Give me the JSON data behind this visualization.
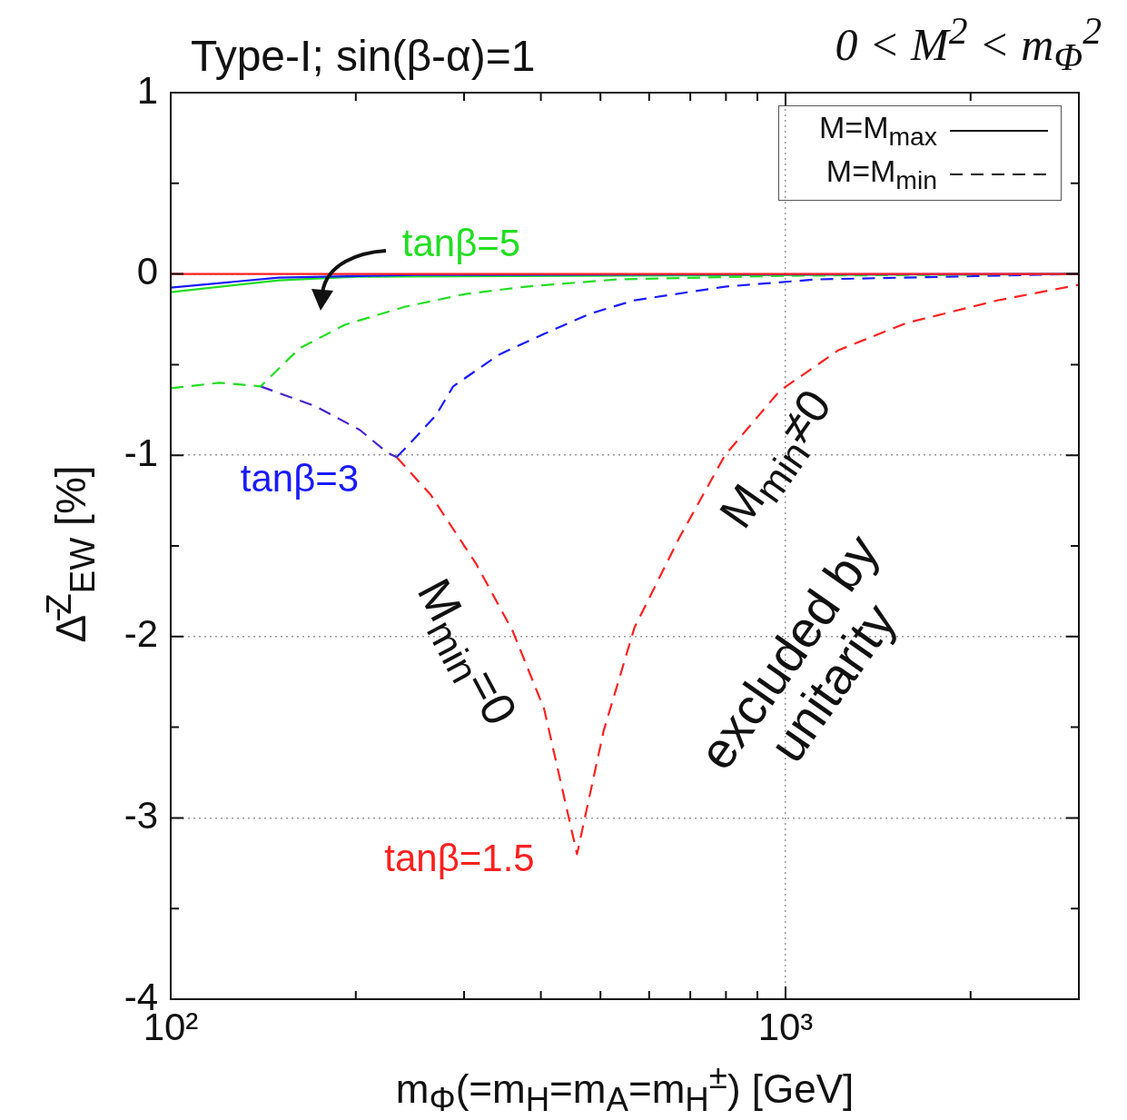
{
  "chart_data": {
    "type": "line",
    "title": "Type-I; sin(β-α)=1",
    "subtitle": "0 < M$^{2}$ < m$_{Φ}$$^{2}$",
    "xlabel": "m$_{Φ}$(=m$_{H}$=m$_{A}$=m$_{H}$$^{±}$) [GeV]",
    "ylabel": "Δ̄$^{Z}$$_{EW}$ [%]",
    "log": "x",
    "xlim": [
      100,
      3000
    ],
    "ylim": [
      -4,
      1
    ],
    "xticks": [
      {
        "value": 100,
        "label": "10²"
      },
      {
        "value": 200,
        "label": null
      },
      {
        "value": 300,
        "label": null
      },
      {
        "value": 400,
        "label": null
      },
      {
        "value": 500,
        "label": null
      },
      {
        "value": 600,
        "label": null
      },
      {
        "value": 700,
        "label": null
      },
      {
        "value": 800,
        "label": null
      },
      {
        "value": 900,
        "label": null
      },
      {
        "value": 1000,
        "label": "10³"
      },
      {
        "value": 2000,
        "label": null
      }
    ],
    "yticks": [
      -4,
      {
        "value": -3.5,
        "label": null
      },
      -3,
      {
        "value": -2.5,
        "label": null
      },
      -2,
      {
        "value": -1.5,
        "label": null
      },
      -1,
      {
        "value": -0.5,
        "label": null
      },
      0,
      {
        "value": 0.5,
        "label": null
      },
      1
    ],
    "grid": true,
    "marker": "none",
    "annotations": [
      "M=M$_{max}$",
      "M=M$_{min}$",
      "M$_{min}$=0",
      "M$_{min}$≠0",
      "excluded by unitarity"
    ],
    "series": [
      {
        "color": "#ff2020",
        "line_style": "solid",
        "x": [
          100,
          3000
        ],
        "values": [
          0,
          0
        ]
      },
      {
        "color": "#1a1aff",
        "line_style": "solid",
        "x": [
          100,
          150,
          250,
          3000
        ],
        "values": [
          -0.075,
          -0.02,
          -0.005,
          0
        ]
      },
      {
        "color": "#22dd22",
        "line_style": "solid",
        "x": [
          100,
          150,
          200,
          3000
        ],
        "values": [
          -0.1,
          -0.035,
          -0.015,
          0
        ]
      },
      {
        "name": "tanβ=5",
        "color": "#22dd22",
        "line_style": "dashed",
        "x": [
          100,
          120,
          140,
          162,
          192,
          241,
          302,
          378,
          532,
          1000,
          3000
        ],
        "values": [
          -0.63,
          -0.6,
          -0.62,
          -0.41,
          -0.28,
          -0.18,
          -0.11,
          -0.07,
          -0.03,
          -0.01,
          0
        ]
      },
      {
        "name": "tanβ=3",
        "color": "#1a1aff",
        "line_style": "dashed",
        "x": [
          233,
          241,
          270,
          288,
          342,
          405,
          480,
          568,
          797,
          1122,
          3000
        ],
        "values": [
          -1.01,
          -0.96,
          -0.78,
          -0.62,
          -0.445,
          -0.33,
          -0.22,
          -0.145,
          -0.07,
          -0.03,
          0
        ]
      },
      {
        "color": "#4a22cc",
        "line_style": "dashed",
        "x": [
          140,
          172,
          203,
          225,
          233
        ],
        "values": [
          -0.62,
          -0.73,
          -0.86,
          -0.985,
          -1.01
        ]
      },
      {
        "name": "tanβ=1.5",
        "color": "#ff2020",
        "line_style": "dashed",
        "x": [
          233,
          265,
          314,
          360,
          405,
          458,
          506,
          568,
          673,
          797,
          978,
          1220,
          1575,
          2217,
          3000
        ],
        "values": [
          -1.01,
          -1.22,
          -1.6,
          -1.97,
          -2.4,
          -3.2,
          -2.52,
          -1.95,
          -1.45,
          -1.0,
          -0.645,
          -0.42,
          -0.27,
          -0.145,
          -0.06
        ]
      }
    ]
  }
}
